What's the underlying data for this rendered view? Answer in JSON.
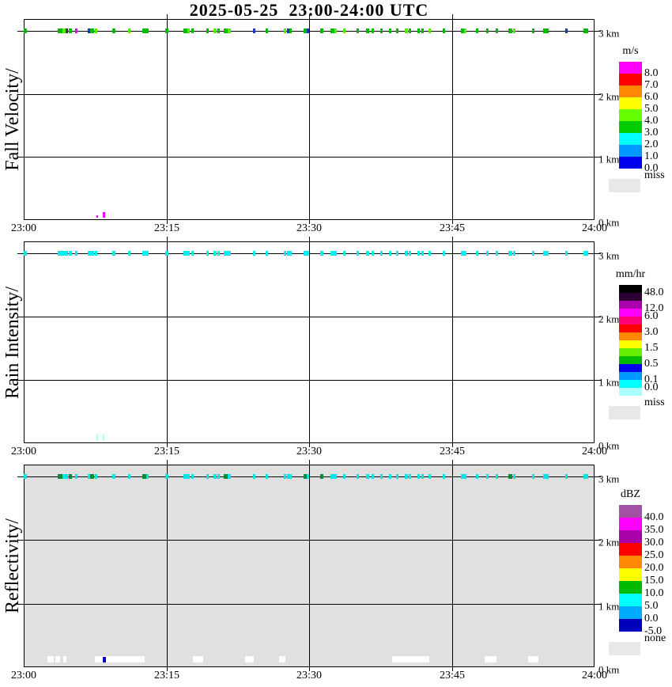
{
  "figure": {
    "title": "2025-05-25  23:00-24:00 UTC"
  },
  "chart_data": [
    {
      "id": "fall-velocity",
      "type": "heatmap",
      "title": "Fall Velocity",
      "axis_label": "Fall Velocity/",
      "unit": "m/s",
      "x_ticks": [
        "23:00",
        "23:15",
        "23:30",
        "23:45",
        "24:00"
      ],
      "km_labels": [
        "3 km",
        "2 km",
        "1 km",
        "0 km"
      ],
      "y_range_km": [
        0,
        3
      ],
      "background": "#FFFFFF",
      "grid": true,
      "colorbar": {
        "title": "m/s",
        "segments": [
          {
            "c": "#FF00FF",
            "h": 15,
            "l": "8.0"
          },
          {
            "c": "#FF0000",
            "h": 15,
            "l": "7.0"
          },
          {
            "c": "#FF8800",
            "h": 15,
            "l": "6.0"
          },
          {
            "c": "#FFFF00",
            "h": 15,
            "l": "5.0"
          },
          {
            "c": "#66FF00",
            "h": 15,
            "l": "4.0"
          },
          {
            "c": "#00CC00",
            "h": 15,
            "l": "3.0"
          },
          {
            "c": "#00FFFF",
            "h": 15,
            "l": "2.0"
          },
          {
            "c": "#0099FF",
            "h": 15,
            "l": "1.0"
          },
          {
            "c": "#0000EE",
            "h": 15,
            "l": "0.0"
          }
        ],
        "missing": {
          "l": "miss",
          "c": "#E8E8E8"
        }
      },
      "palette": {
        "g": "#00BB00",
        "c": "#55EE00",
        "b": "#2233CC",
        "m": "#EE00EE",
        "k": "#333344"
      },
      "default_color": "g",
      "marks_3km": [
        [
          0.0,
          4,
          "g"
        ],
        [
          0.06,
          6,
          "g"
        ],
        [
          0.068,
          4,
          "c"
        ],
        [
          0.073,
          3,
          "k"
        ],
        [
          0.079,
          4,
          "g"
        ],
        [
          0.09,
          3,
          "m"
        ],
        [
          0.112,
          3,
          "b"
        ],
        [
          0.117,
          5,
          "g"
        ],
        [
          0.124,
          3,
          "c"
        ],
        [
          0.155,
          4,
          "g"
        ],
        [
          0.183,
          3,
          "c"
        ],
        [
          0.208,
          5,
          "g"
        ],
        [
          0.215,
          3,
          "g"
        ],
        [
          0.248,
          4,
          "g"
        ],
        [
          0.28,
          5,
          "g"
        ],
        [
          0.287,
          3,
          "c"
        ],
        [
          0.294,
          3,
          "g"
        ],
        [
          0.32,
          3,
          "g"
        ],
        [
          0.332,
          4,
          "c"
        ],
        [
          0.34,
          3,
          "g"
        ],
        [
          0.35,
          6,
          "g"
        ],
        [
          0.357,
          4,
          "c"
        ],
        [
          0.402,
          3,
          "b"
        ],
        [
          0.424,
          3,
          "g"
        ],
        [
          0.456,
          3,
          "c"
        ],
        [
          0.461,
          3,
          "b"
        ],
        [
          0.466,
          3,
          "g"
        ],
        [
          0.49,
          4,
          "g"
        ],
        [
          0.496,
          3,
          "b"
        ],
        [
          0.519,
          4,
          "g"
        ],
        [
          0.538,
          5,
          "g"
        ],
        [
          0.545,
          3,
          "c"
        ],
        [
          0.56,
          3,
          "c"
        ],
        [
          0.583,
          3,
          "g"
        ],
        [
          0.6,
          4,
          "g"
        ],
        [
          0.61,
          3,
          "g"
        ],
        [
          0.625,
          3,
          "g"
        ],
        [
          0.64,
          3,
          "g"
        ],
        [
          0.653,
          3,
          "g"
        ],
        [
          0.668,
          4,
          "c"
        ],
        [
          0.674,
          3,
          "g"
        ],
        [
          0.69,
          3,
          "g"
        ],
        [
          0.697,
          3,
          "g"
        ],
        [
          0.709,
          3,
          "c"
        ],
        [
          0.734,
          3,
          "g"
        ],
        [
          0.766,
          4,
          "g"
        ],
        [
          0.772,
          3,
          "c"
        ],
        [
          0.792,
          3,
          "g"
        ],
        [
          0.81,
          3,
          "g"
        ],
        [
          0.827,
          3,
          "g"
        ],
        [
          0.849,
          5,
          "g"
        ],
        [
          0.857,
          3,
          "c"
        ],
        [
          0.891,
          3,
          "g"
        ],
        [
          0.91,
          4,
          "g"
        ],
        [
          0.916,
          3,
          "g"
        ],
        [
          0.949,
          3,
          "b"
        ],
        [
          0.981,
          6,
          "g"
        ]
      ],
      "marks_ground": [
        [
          0.127,
          2,
          3,
          "m"
        ],
        [
          0.138,
          3,
          7,
          "m"
        ]
      ]
    },
    {
      "id": "rain-intensity",
      "type": "heatmap",
      "title": "Rain Intensity",
      "axis_label": "Rain Intensity/",
      "unit": "mm/hr",
      "x_ticks": [
        "23:00",
        "23:15",
        "23:30",
        "23:45",
        "24:00"
      ],
      "km_labels": [
        "3 km",
        "2 km",
        "1 km",
        "0 km"
      ],
      "y_range_km": [
        0,
        3
      ],
      "background": "#FFFFFF",
      "grid": true,
      "colorbar": {
        "title": "mm/hr",
        "segments": [
          {
            "c": "#000000",
            "h": 10,
            "l": "48.0"
          },
          {
            "c": "#2B0033",
            "h": 10
          },
          {
            "c": "#AA00AA",
            "h": 10,
            "l": "12.0"
          },
          {
            "c": "#FF00FF",
            "h": 10,
            "l": "6.0"
          },
          {
            "c": "#FF0077",
            "h": 10
          },
          {
            "c": "#FF0000",
            "h": 10,
            "l": "3.0"
          },
          {
            "c": "#FF8800",
            "h": 10
          },
          {
            "c": "#FFFF00",
            "h": 10,
            "l": "1.5"
          },
          {
            "c": "#66EE00",
            "h": 10
          },
          {
            "c": "#00BB00",
            "h": 10,
            "l": "0.5"
          },
          {
            "c": "#0000EE",
            "h": 10
          },
          {
            "c": "#0099FF",
            "h": 10,
            "l": "0.1"
          },
          {
            "c": "#00FFFF",
            "h": 10,
            "l": "0.0"
          },
          {
            "c": "#AAFFFF",
            "h": 10
          }
        ],
        "missing": {
          "l": "miss",
          "c": "#E8E8E8"
        }
      },
      "palette": {
        "t": "#00F0F0",
        "n": "#AAFFFF"
      },
      "default_color": "t",
      "marks_3km": [
        [
          0.0,
          4
        ],
        [
          0.06,
          6
        ],
        [
          0.068,
          4
        ],
        [
          0.073,
          3
        ],
        [
          0.079,
          4
        ],
        [
          0.09,
          3
        ],
        [
          0.112,
          3
        ],
        [
          0.117,
          5
        ],
        [
          0.124,
          3
        ],
        [
          0.155,
          4
        ],
        [
          0.183,
          3
        ],
        [
          0.208,
          5
        ],
        [
          0.215,
          3
        ],
        [
          0.248,
          4
        ],
        [
          0.28,
          5
        ],
        [
          0.287,
          3
        ],
        [
          0.294,
          3
        ],
        [
          0.32,
          3
        ],
        [
          0.332,
          4
        ],
        [
          0.34,
          3
        ],
        [
          0.35,
          6
        ],
        [
          0.357,
          4
        ],
        [
          0.402,
          3
        ],
        [
          0.424,
          3
        ],
        [
          0.456,
          3
        ],
        [
          0.461,
          3
        ],
        [
          0.466,
          3
        ],
        [
          0.49,
          4
        ],
        [
          0.496,
          3
        ],
        [
          0.519,
          4
        ],
        [
          0.538,
          5
        ],
        [
          0.545,
          3
        ],
        [
          0.56,
          3
        ],
        [
          0.583,
          3
        ],
        [
          0.6,
          4
        ],
        [
          0.61,
          3
        ],
        [
          0.625,
          3
        ],
        [
          0.64,
          3
        ],
        [
          0.653,
          3
        ],
        [
          0.668,
          4
        ],
        [
          0.674,
          3
        ],
        [
          0.69,
          3
        ],
        [
          0.697,
          3
        ],
        [
          0.709,
          3
        ],
        [
          0.734,
          3
        ],
        [
          0.766,
          4
        ],
        [
          0.772,
          3
        ],
        [
          0.792,
          3
        ],
        [
          0.81,
          3
        ],
        [
          0.827,
          3
        ],
        [
          0.849,
          5
        ],
        [
          0.857,
          3
        ],
        [
          0.891,
          3
        ],
        [
          0.91,
          4
        ],
        [
          0.916,
          3
        ],
        [
          0.949,
          3
        ],
        [
          0.981,
          6
        ]
      ],
      "marks_ground": [
        [
          0.127,
          2,
          8,
          "n"
        ],
        [
          0.138,
          2,
          8,
          "n"
        ]
      ]
    },
    {
      "id": "reflectivity",
      "type": "heatmap",
      "title": "Reflectivity",
      "axis_label": "Reflectivity/",
      "unit": "dBZ",
      "x_ticks": [
        "23:00",
        "23:15",
        "23:30",
        "23:45",
        "24:00"
      ],
      "km_labels": [
        "3 km",
        "2 km",
        "1 km",
        "0 km"
      ],
      "y_range_km": [
        0,
        3
      ],
      "background": "#E0E0E0",
      "grid": true,
      "colorbar": {
        "title": "dBZ",
        "segments": [
          {
            "c": "#A352A3",
            "h": 16,
            "l": "40.0"
          },
          {
            "c": "#FF00FF",
            "h": 16,
            "l": "35.0"
          },
          {
            "c": "#AA00AA",
            "h": 16,
            "l": "30.0"
          },
          {
            "c": "#FF0000",
            "h": 16,
            "l": "25.0"
          },
          {
            "c": "#FF8800",
            "h": 16,
            "l": "20.0"
          },
          {
            "c": "#FFFF00",
            "h": 16,
            "l": "15.0"
          },
          {
            "c": "#00BB00",
            "h": 16,
            "l": "10.0"
          },
          {
            "c": "#00FFFF",
            "h": 16,
            "l": "5.0"
          },
          {
            "c": "#00AAFF",
            "h": 16,
            "l": "0.0"
          },
          {
            "c": "#0000BB",
            "h": 16,
            "l": "-5.0"
          }
        ],
        "missing": {
          "l": "none",
          "c": "#E8E8E8"
        }
      },
      "palette": {
        "t": "#00E6E6",
        "e": "#118833",
        "u": "#0000BB",
        "w": "#FFFFFF"
      },
      "default_color": "t",
      "marks_3km": [
        [
          0.0,
          4
        ],
        [
          0.06,
          6,
          "e"
        ],
        [
          0.068,
          4
        ],
        [
          0.073,
          3
        ],
        [
          0.079,
          4,
          "e"
        ],
        [
          0.09,
          3
        ],
        [
          0.112,
          3
        ],
        [
          0.117,
          5,
          "e"
        ],
        [
          0.124,
          3
        ],
        [
          0.155,
          4
        ],
        [
          0.183,
          3
        ],
        [
          0.208,
          5,
          "e"
        ],
        [
          0.215,
          3
        ],
        [
          0.248,
          4
        ],
        [
          0.28,
          5
        ],
        [
          0.287,
          3
        ],
        [
          0.294,
          3
        ],
        [
          0.32,
          3
        ],
        [
          0.332,
          4
        ],
        [
          0.34,
          3
        ],
        [
          0.35,
          6,
          "e"
        ],
        [
          0.357,
          4
        ],
        [
          0.402,
          3
        ],
        [
          0.424,
          3
        ],
        [
          0.456,
          3
        ],
        [
          0.461,
          3
        ],
        [
          0.466,
          3
        ],
        [
          0.49,
          4,
          "e"
        ],
        [
          0.496,
          3
        ],
        [
          0.519,
          4,
          "e"
        ],
        [
          0.538,
          5
        ],
        [
          0.545,
          3
        ],
        [
          0.56,
          3
        ],
        [
          0.583,
          3
        ],
        [
          0.6,
          4
        ],
        [
          0.61,
          3
        ],
        [
          0.625,
          3
        ],
        [
          0.64,
          3
        ],
        [
          0.653,
          3
        ],
        [
          0.668,
          4
        ],
        [
          0.674,
          3
        ],
        [
          0.69,
          3
        ],
        [
          0.697,
          3
        ],
        [
          0.709,
          3
        ],
        [
          0.734,
          3
        ],
        [
          0.766,
          4
        ],
        [
          0.772,
          3
        ],
        [
          0.792,
          3
        ],
        [
          0.81,
          3
        ],
        [
          0.827,
          3
        ],
        [
          0.849,
          5,
          "e"
        ],
        [
          0.857,
          3
        ],
        [
          0.891,
          3
        ],
        [
          0.91,
          4
        ],
        [
          0.916,
          3
        ],
        [
          0.949,
          3
        ],
        [
          0.981,
          6
        ]
      ],
      "marks_ground": [
        [
          0.042,
          8,
          8,
          "w"
        ],
        [
          0.055,
          6,
          8,
          "w"
        ],
        [
          0.069,
          4,
          8,
          "w"
        ],
        [
          0.125,
          63,
          8,
          "w"
        ],
        [
          0.138,
          4,
          7,
          "u"
        ],
        [
          0.297,
          13,
          8,
          "w"
        ],
        [
          0.388,
          11,
          8,
          "w"
        ],
        [
          0.447,
          8,
          8,
          "w"
        ],
        [
          0.645,
          46,
          8,
          "w"
        ],
        [
          0.7,
          8,
          8,
          "w"
        ],
        [
          0.807,
          15,
          8,
          "w"
        ],
        [
          0.883,
          13,
          8,
          "w"
        ]
      ]
    }
  ]
}
